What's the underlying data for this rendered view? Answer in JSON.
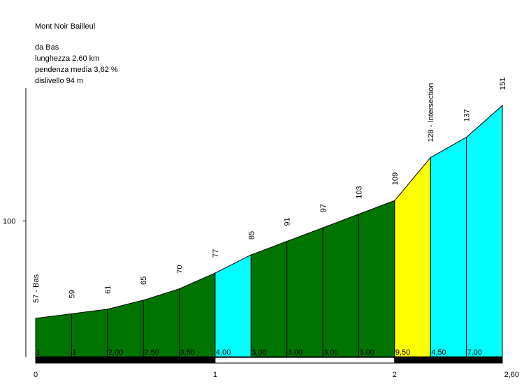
{
  "title": "Mont Noir Bailleul",
  "info": {
    "from": "da Bas",
    "length": "lunghezza 2,60 km",
    "avg_gradient": "pendenza media 3,62 %",
    "elevation_gain": "dislivello 94 m"
  },
  "chart_data": {
    "type": "area",
    "title": "Mont Noir Bailleul",
    "xlabel": "",
    "ylabel": "",
    "x_unit": "km",
    "xlim": [
      0,
      2.6
    ],
    "ylim": [
      40,
      172
    ],
    "y_ticks": [
      {
        "value": 100,
        "label": "100"
      }
    ],
    "x_ticks": [
      {
        "value": 0,
        "label": "0"
      },
      {
        "value": 1,
        "label": "1"
      },
      {
        "value": 2,
        "label": "2"
      },
      {
        "value": 2.6,
        "label": "2,60"
      }
    ],
    "points": [
      {
        "x": 0.0,
        "y": 57,
        "label": "57 - Bas"
      },
      {
        "x": 0.2,
        "y": 59,
        "label": "59"
      },
      {
        "x": 0.4,
        "y": 61,
        "label": "61"
      },
      {
        "x": 0.6,
        "y": 65,
        "label": "65"
      },
      {
        "x": 0.8,
        "y": 70,
        "label": "70"
      },
      {
        "x": 1.0,
        "y": 77,
        "label": "77"
      },
      {
        "x": 1.2,
        "y": 85,
        "label": "85"
      },
      {
        "x": 1.4,
        "y": 91,
        "label": "91"
      },
      {
        "x": 1.6,
        "y": 97,
        "label": "97"
      },
      {
        "x": 1.8,
        "y": 103,
        "label": "103"
      },
      {
        "x": 2.0,
        "y": 109,
        "label": "109"
      },
      {
        "x": 2.2,
        "y": 128,
        "label": "128 - Intersection"
      },
      {
        "x": 2.4,
        "y": 137,
        "label": "137"
      },
      {
        "x": 2.6,
        "y": 151,
        "label": "151"
      }
    ],
    "segments": [
      {
        "gradient": "1",
        "color": "#007400"
      },
      {
        "gradient": "1",
        "color": "#007400"
      },
      {
        "gradient": "2,00",
        "color": "#007400"
      },
      {
        "gradient": "2,50",
        "color": "#007400"
      },
      {
        "gradient": "3,50",
        "color": "#007400"
      },
      {
        "gradient": "4,00",
        "color": "#00ffff"
      },
      {
        "gradient": "3,00",
        "color": "#007400"
      },
      {
        "gradient": "3,00",
        "color": "#007400"
      },
      {
        "gradient": "3,00",
        "color": "#007400"
      },
      {
        "gradient": "3,00",
        "color": "#007400"
      },
      {
        "gradient": "9,50",
        "color": "#ffff00"
      },
      {
        "gradient": "4,50",
        "color": "#00ffff"
      },
      {
        "gradient": "7,00",
        "color": "#00ffff"
      }
    ],
    "grid": false
  }
}
